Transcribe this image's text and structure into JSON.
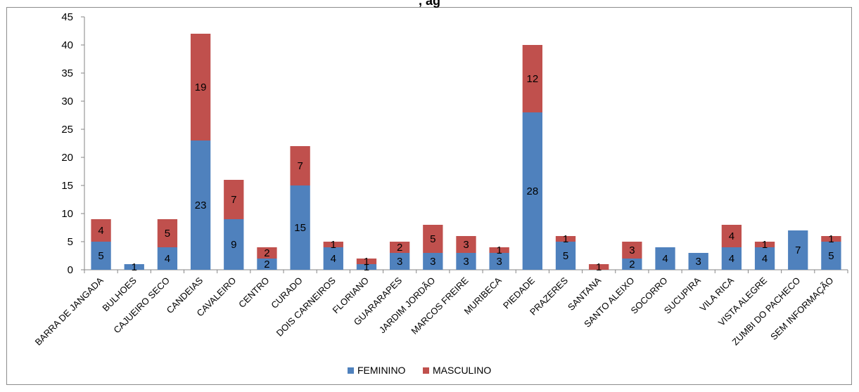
{
  "chart_data": {
    "type": "bar",
    "stacked": true,
    "title": ", ag",
    "categories": [
      "BARRA DE JANGADA",
      "BULHOES",
      "CAJUEIRO SECO",
      "CANDEIAS",
      "CAVALEIRO",
      "CENTRO",
      "CURADO",
      "DOIS CARNEIROS",
      "FLORIANO",
      "GUARARAPES",
      "JARDIM JORDÃO",
      "MARCOS FREIRE",
      "MURIBECA",
      "PIEDADE",
      "PRAZERES",
      "SANTANA",
      "SANTO ALEIXO",
      "SOCORRO",
      "SUCUPIRA",
      "VILA RICA",
      "VISTA ALEGRE",
      "ZUMBI DO PACHECO",
      "SEM INFORMAÇÃO"
    ],
    "series": [
      {
        "name": "FEMININO",
        "color": "#4F81BD",
        "values": [
          5,
          1,
          4,
          23,
          9,
          2,
          15,
          4,
          1,
          3,
          3,
          3,
          3,
          28,
          5,
          0,
          2,
          4,
          3,
          4,
          4,
          7,
          5
        ]
      },
      {
        "name": "MASCULINO",
        "color": "#C0504D",
        "values": [
          4,
          0,
          5,
          19,
          7,
          2,
          7,
          1,
          1,
          2,
          5,
          3,
          1,
          12,
          1,
          1,
          3,
          0,
          0,
          4,
          1,
          0,
          1
        ]
      }
    ],
    "data_labels": {
      "FEMININO": [
        "5",
        "1",
        "4",
        "23",
        "9",
        "2",
        "15",
        "4",
        "1",
        "3",
        "3",
        "3",
        "3",
        "28",
        "5",
        "",
        "2",
        "4",
        "3",
        "4",
        "4",
        "7",
        "5"
      ],
      "MASCULINO": [
        "4",
        "",
        "5",
        "19",
        "7",
        "2",
        "7",
        "1",
        "1",
        "2",
        "5",
        "3",
        "1",
        "12",
        "1",
        "1",
        "3",
        "",
        "",
        "4",
        "1",
        "",
        "1"
      ]
    },
    "ylim": [
      0,
      45
    ],
    "yticks": [
      0,
      5,
      10,
      15,
      20,
      25,
      30,
      35,
      40,
      45
    ],
    "grid": false,
    "legend_position": "bottom"
  }
}
